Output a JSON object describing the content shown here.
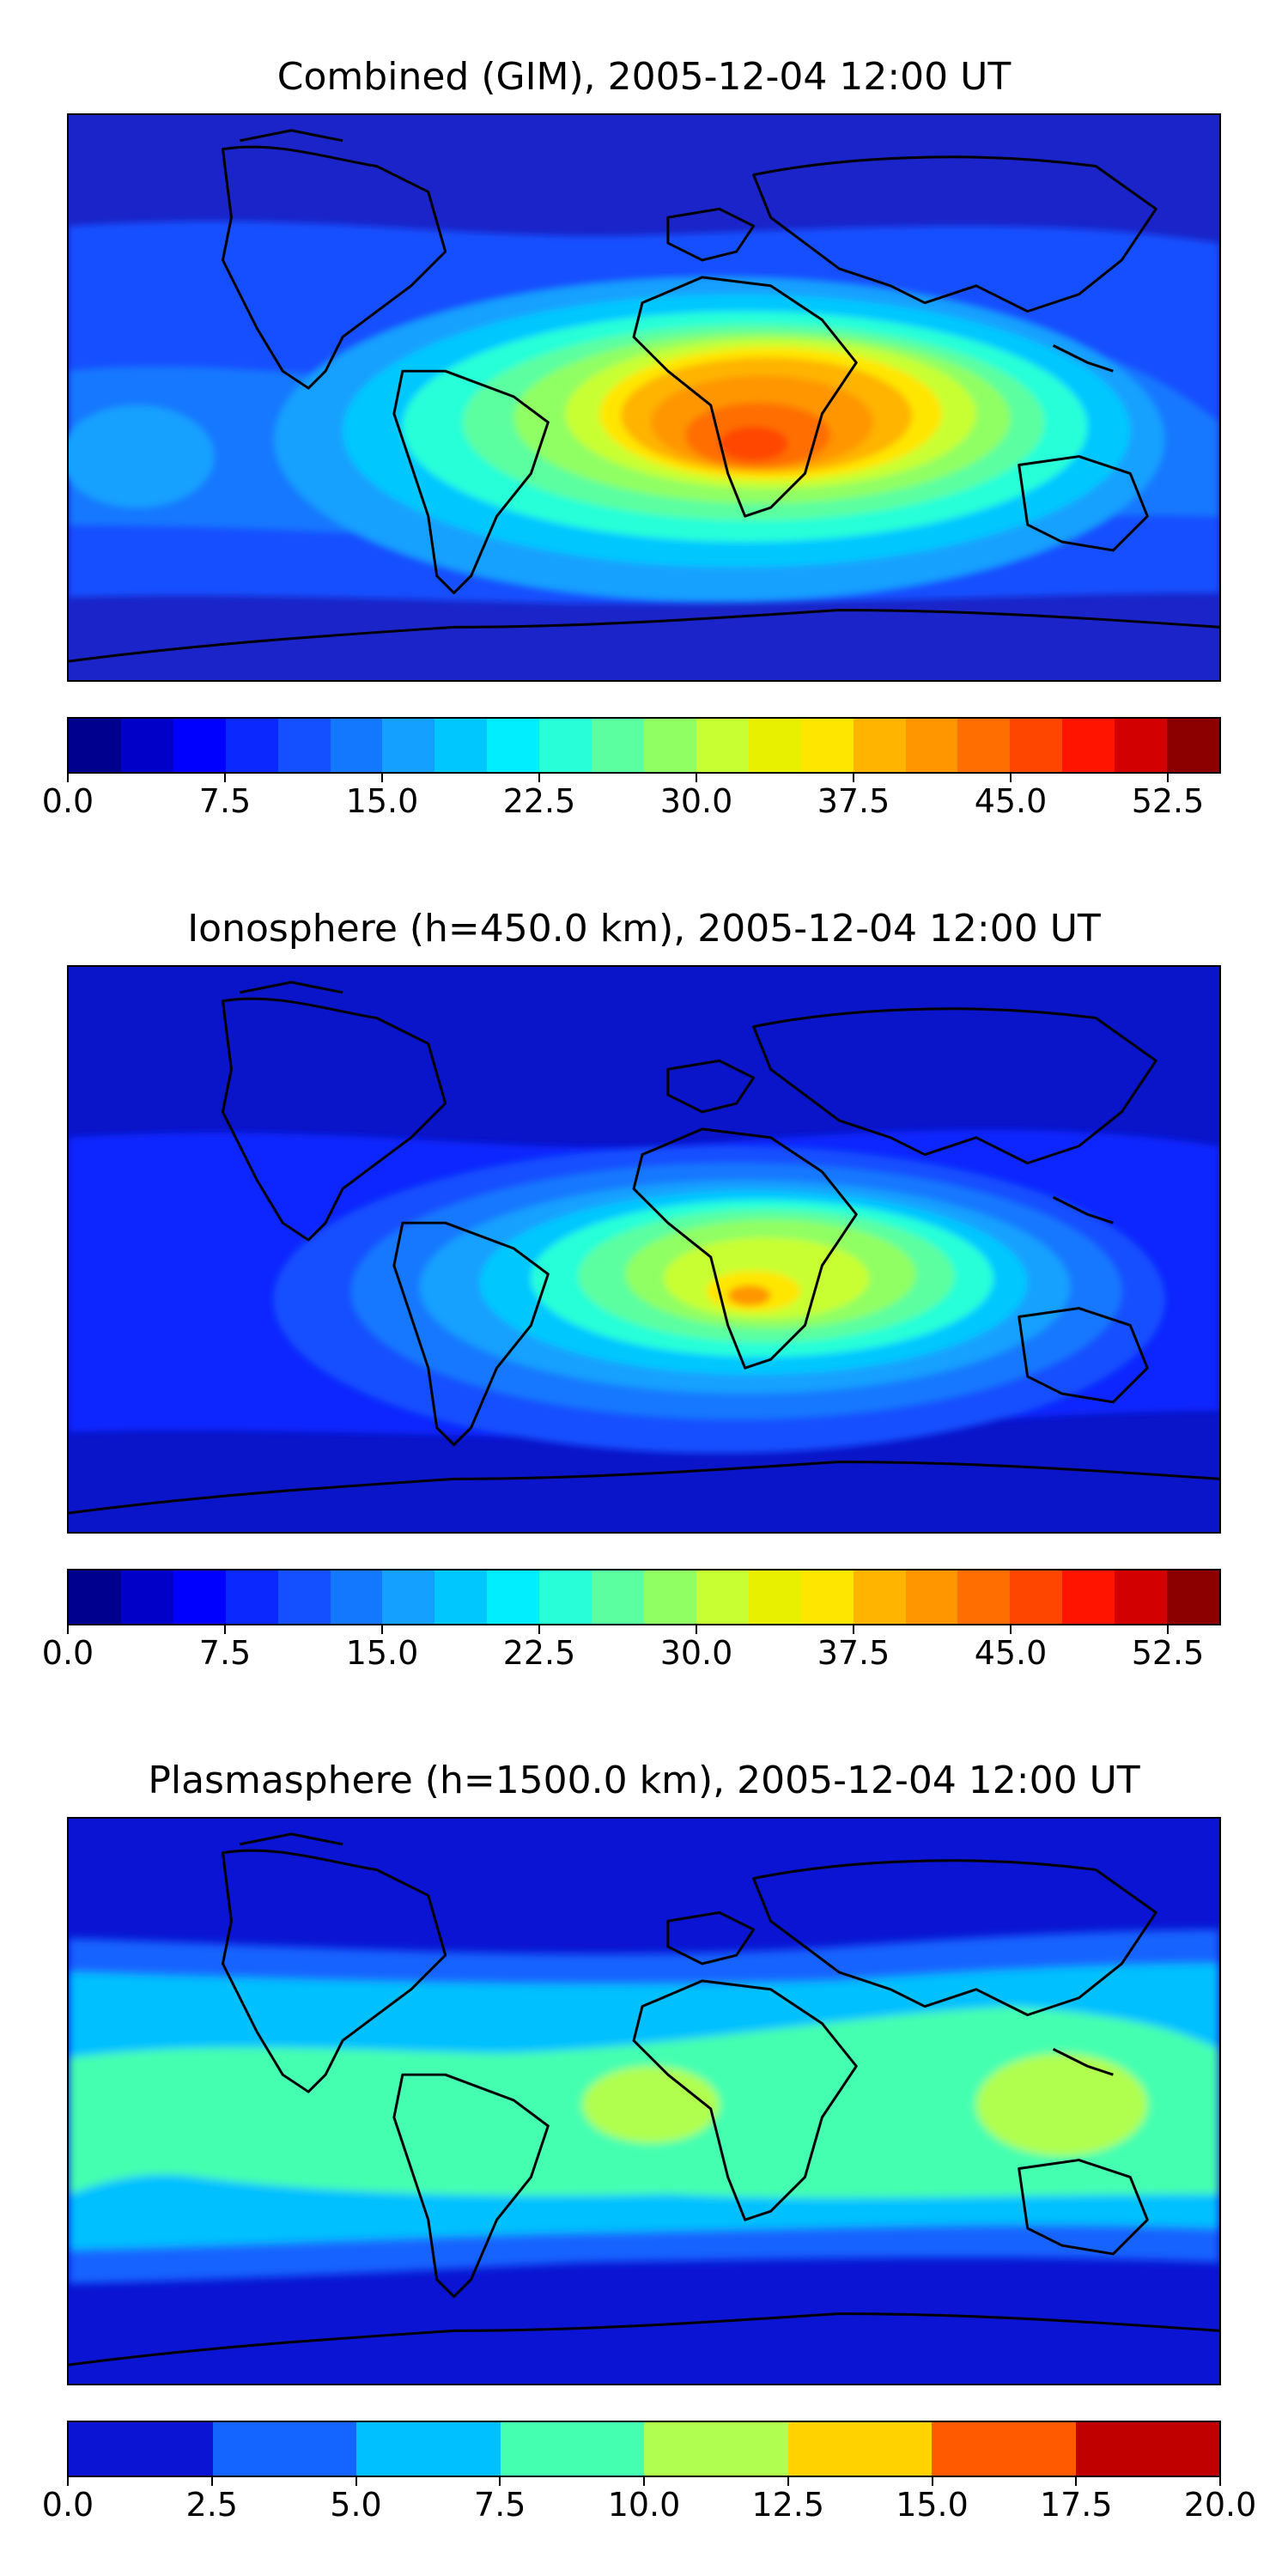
{
  "panels": [
    {
      "title": "Combined (GIM), 2005-12-04 12:00 UT",
      "colorbar": {
        "ticks": [
          "0.0",
          "7.5",
          "15.0",
          "22.5",
          "30.0",
          "37.5",
          "45.0",
          "52.5"
        ],
        "tick_values": [
          0,
          7.5,
          15,
          22.5,
          30,
          37.5,
          45,
          52.5
        ],
        "vmin": 0,
        "vmax": 55,
        "colors": [
          "#00008f",
          "#0000c8",
          "#0000ff",
          "#0a28ff",
          "#1450ff",
          "#1478ff",
          "#14a0ff",
          "#00c8ff",
          "#00eeff",
          "#28ffd8",
          "#5cffa0",
          "#90ff64",
          "#c8ff32",
          "#e8f000",
          "#ffe600",
          "#ffb400",
          "#ff9600",
          "#ff6e00",
          "#ff4600",
          "#ff1400",
          "#d20000",
          "#8c0000"
        ]
      }
    },
    {
      "title": "Ionosphere  (h=450.0 km), 2005-12-04 12:00 UT",
      "colorbar": {
        "ticks": [
          "0.0",
          "7.5",
          "15.0",
          "22.5",
          "30.0",
          "37.5",
          "45.0",
          "52.5"
        ],
        "tick_values": [
          0,
          7.5,
          15,
          22.5,
          30,
          37.5,
          45,
          52.5
        ],
        "vmin": 0,
        "vmax": 55,
        "colors": [
          "#00008f",
          "#0000c8",
          "#0000ff",
          "#0a28ff",
          "#1450ff",
          "#1478ff",
          "#14a0ff",
          "#00c8ff",
          "#00eeff",
          "#28ffd8",
          "#5cffa0",
          "#90ff64",
          "#c8ff32",
          "#e8f000",
          "#ffe600",
          "#ffb400",
          "#ff9600",
          "#ff6e00",
          "#ff4600",
          "#ff1400",
          "#d20000",
          "#8c0000"
        ]
      }
    },
    {
      "title": "Plasmasphere (h=1500.0 km), 2005-12-04 12:00 UT",
      "colorbar": {
        "ticks": [
          "0.0",
          "2.5",
          "5.0",
          "7.5",
          "10.0",
          "12.5",
          "15.0",
          "17.5",
          "20.0"
        ],
        "tick_values": [
          0,
          2.5,
          5,
          7.5,
          10,
          12.5,
          15,
          17.5,
          20
        ],
        "vmin": 0,
        "vmax": 20,
        "colors": [
          "#0a14d2",
          "#1464ff",
          "#00c0ff",
          "#44ffb0",
          "#b0ff50",
          "#ffd200",
          "#ff5a00",
          "#c00000"
        ]
      }
    }
  ],
  "colors": {
    "ocean_background": "#1a2ad8",
    "coastline": "#000000"
  }
}
